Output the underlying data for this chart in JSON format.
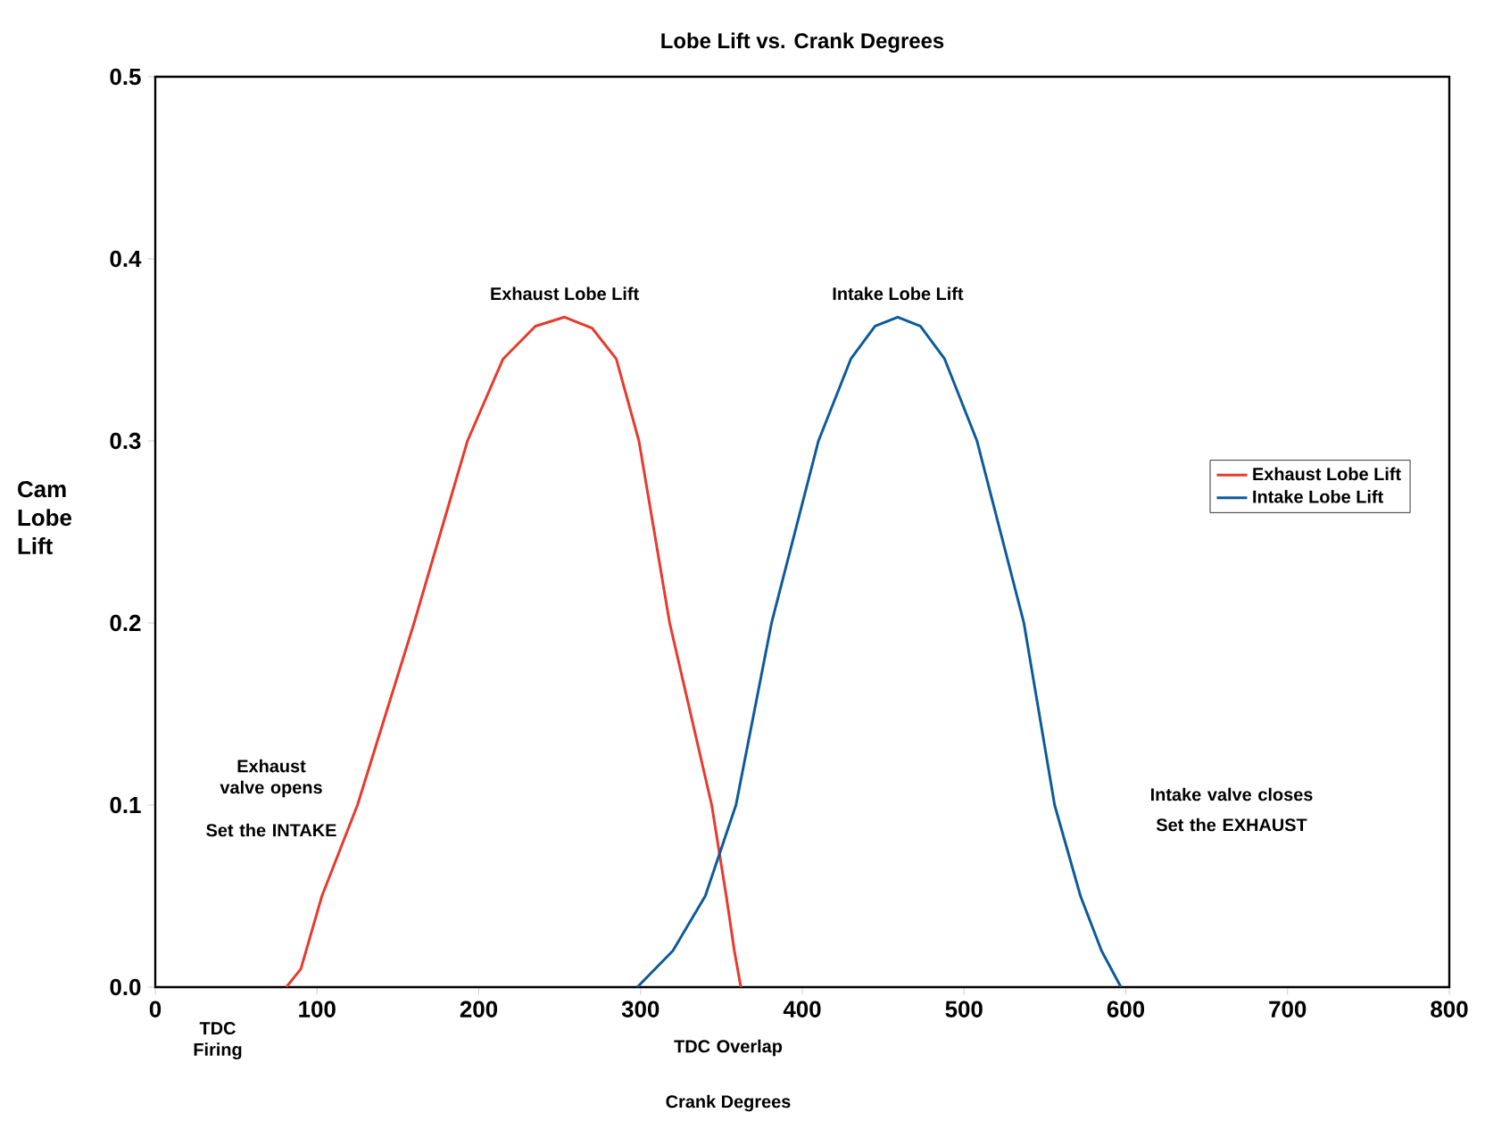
{
  "chart_data": {
    "type": "line",
    "title": "Lobe Lift vs. Crank Degrees",
    "xlabel": "Crank Degrees",
    "ylabel": "Cam Lobe Lift",
    "xlim": [
      0,
      800
    ],
    "ylim": [
      0,
      0.5
    ],
    "xticks": [
      0,
      100,
      200,
      300,
      400,
      500,
      600,
      700,
      800
    ],
    "yticks": [
      {
        "value": 0,
        "label": "0.0"
      },
      {
        "value": 0.1,
        "label": "0.1"
      },
      {
        "value": 0.2,
        "label": "0.2"
      },
      {
        "value": 0.3,
        "label": "0.3"
      },
      {
        "value": 0.4,
        "label": "0.4"
      },
      {
        "value": 0.5,
        "label": "0.5"
      }
    ],
    "legend": "right",
    "marker": "none",
    "line_style": "solid",
    "series": [
      {
        "name": "Exhaust Lobe Lift",
        "color": "#e8392c",
        "x": [
          81,
          90,
          103,
          125,
          160,
          193,
          215,
          235,
          253,
          270,
          285,
          299,
          318,
          344,
          353,
          358,
          362
        ],
        "values": [
          0,
          0.01,
          0.05,
          0.1,
          0.2,
          0.3,
          0.345,
          0.363,
          0.368,
          0.362,
          0.345,
          0.3,
          0.2,
          0.1,
          0.05,
          0.02,
          0
        ]
      },
      {
        "name": "Intake Lobe Lift",
        "color": "#0d5a9a",
        "x": [
          298,
          320,
          340,
          359,
          381,
          410,
          430,
          445,
          459,
          473,
          488,
          508,
          537,
          556,
          572,
          585,
          597
        ],
        "values": [
          0,
          0.02,
          0.05,
          0.1,
          0.2,
          0.3,
          0.345,
          0.363,
          0.368,
          0.363,
          0.345,
          0.3,
          0.2,
          0.1,
          0.05,
          0.02,
          0
        ]
      }
    ],
    "annotations": [
      {
        "text": "Exhaust Lobe Lift",
        "x": 253,
        "y": 0.368
      },
      {
        "text": "Intake Lobe Lift",
        "x": 459,
        "y": 0.368
      },
      "Exhaust valve opens",
      "Set the INTAKE",
      "Intake valve closes",
      "Set the EXHAUST",
      "TDC Firing",
      "TDC Overlap"
    ]
  }
}
